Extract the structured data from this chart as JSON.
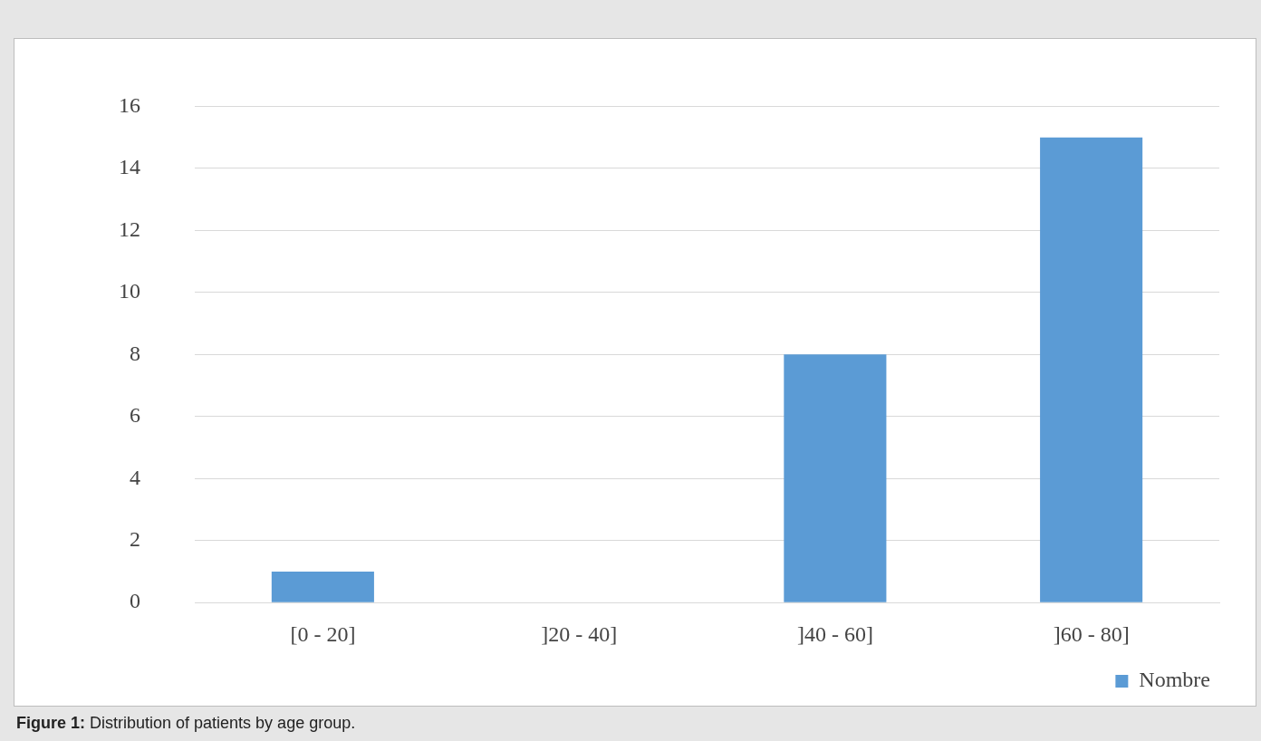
{
  "chart_data": {
    "type": "bar",
    "categories": [
      "[0 - 20]",
      "]20 - 40]",
      "]40 - 60]",
      "]60 - 80]"
    ],
    "series": [
      {
        "name": "Nombre",
        "color": "#5b9bd5",
        "values": [
          1,
          0,
          8,
          15
        ]
      }
    ],
    "ylim": [
      0,
      16
    ],
    "yticks": [
      0,
      2,
      4,
      6,
      8,
      10,
      12,
      14,
      16
    ],
    "grid": "y",
    "legend": "bottom right",
    "annotations": [
      "Figure 1: Distribution of patients by age group."
    ]
  }
}
